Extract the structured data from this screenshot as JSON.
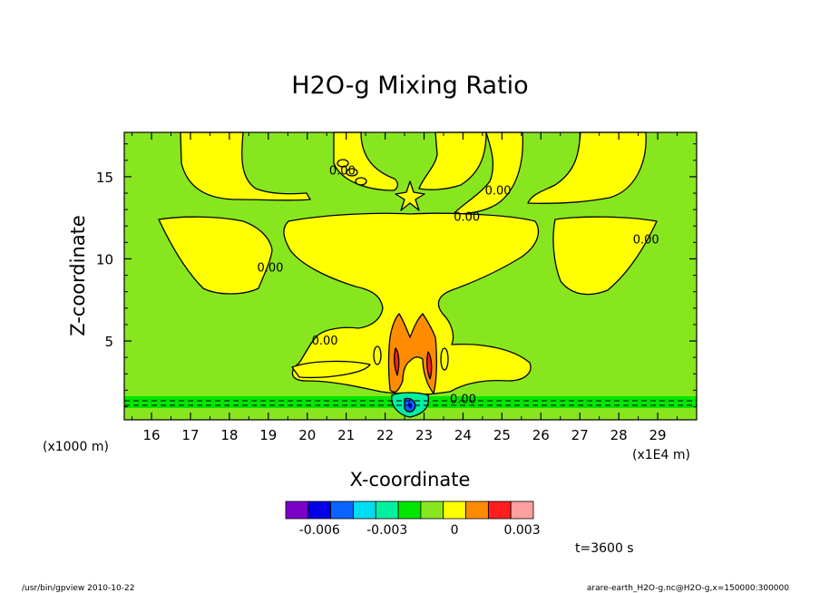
{
  "chart_data": {
    "type": "heatmap",
    "title": "H2O-g Mixing Ratio",
    "xlabel": "X-coordinate",
    "ylabel": "Z-coordinate",
    "x_unit_left": "(x1000 m)",
    "x_unit_right": "(x1E4 m)",
    "xlim": [
      15.3,
      30.0
    ],
    "ylim": [
      0.2,
      17.7
    ],
    "x_ticks": [
      "16",
      "17",
      "18",
      "19",
      "20",
      "21",
      "22",
      "23",
      "24",
      "25",
      "26",
      "27",
      "28",
      "29"
    ],
    "x_tick_values": [
      16,
      17,
      18,
      19,
      20,
      21,
      22,
      23,
      24,
      25,
      26,
      27,
      28,
      29
    ],
    "y_ticks": [
      "5",
      "10",
      "15"
    ],
    "y_tick_values": [
      5,
      10,
      15
    ],
    "contour_labels": [
      {
        "text": "0.00",
        "x": 19.05,
        "y": 9.5
      },
      {
        "text": "0.00",
        "x": 20.9,
        "y": 15.4
      },
      {
        "text": "0.00",
        "x": 24.9,
        "y": 14.2
      },
      {
        "text": "0.00",
        "x": 24.1,
        "y": 12.6
      },
      {
        "text": "0.00",
        "x": 28.7,
        "y": 11.2
      },
      {
        "text": "0.00",
        "x": 20.45,
        "y": 5.05
      },
      {
        "text": "0.00",
        "x": 24.0,
        "y": 1.5
      }
    ],
    "colorbar": {
      "colors": [
        "#7a00c8",
        "#0000e6",
        "#0a64ff",
        "#00dcf0",
        "#00f0a0",
        "#00e600",
        "#88e61e",
        "#ffff00",
        "#ff8c00",
        "#ff1e1e",
        "#ffa0a0"
      ],
      "tick_labels": [
        "-0.006",
        "-0.003",
        "0",
        "0.003"
      ]
    },
    "time_label": "t=3600 s"
  },
  "footer": {
    "left": "/usr/bin/gpview  2010-10-22",
    "right": "arare-earth_H2O-g.nc@H2O-g,x=150000:300000"
  }
}
